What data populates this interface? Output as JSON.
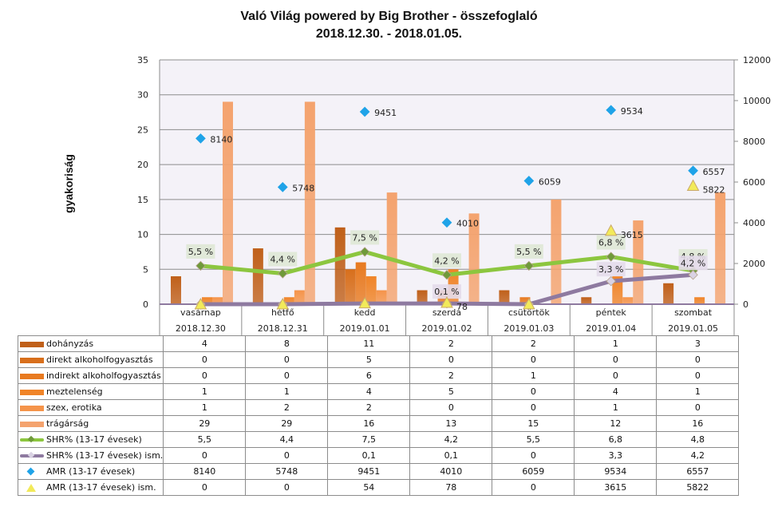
{
  "chart_data": {
    "type": "bar",
    "title": "Való Világ powered by Big Brother - összefoglaló",
    "subtitle": "2018.12.30. - 2018.01.05.",
    "ylabel": "gyakoriság",
    "y2label": "",
    "ylim": [
      0,
      35
    ],
    "y2lim": [
      0,
      12000
    ],
    "yticks": [
      "0",
      "5",
      "10",
      "15",
      "20",
      "25",
      "30",
      "35"
    ],
    "y2ticks": [
      "0",
      "2000",
      "4000",
      "6000",
      "8000",
      "10000",
      "12000"
    ],
    "grid": true,
    "legend": "data-table",
    "categories": [
      {
        "day": "vasárnap",
        "date": "2018.12.30"
      },
      {
        "day": "hétfő",
        "date": "2018.12.31"
      },
      {
        "day": "kedd",
        "date": "2019.01.01"
      },
      {
        "day": "szerda",
        "date": "2019.01.02"
      },
      {
        "day": "csütörtök",
        "date": "2019.01.03"
      },
      {
        "day": "péntek",
        "date": "2019.01.04"
      },
      {
        "day": "szombat",
        "date": "2019.01.05"
      }
    ],
    "series": [
      {
        "name": "dohányzás",
        "type": "bar",
        "axis": "left",
        "color": "#c0601a",
        "values": [
          4,
          8,
          11,
          2,
          2,
          1,
          3
        ],
        "table": [
          "4",
          "8",
          "11",
          "2",
          "2",
          "1",
          "3"
        ]
      },
      {
        "name": "direkt alkoholfogyasztás",
        "type": "bar",
        "axis": "left",
        "color": "#d86f1c",
        "values": [
          0,
          0,
          5,
          0,
          0,
          0,
          0
        ],
        "table": [
          "0",
          "0",
          "5",
          "0",
          "0",
          "0",
          "0"
        ]
      },
      {
        "name": "indirekt alkoholfogyasztás",
        "type": "bar",
        "axis": "left",
        "color": "#e87a20",
        "values": [
          0,
          0,
          6,
          2,
          1,
          0,
          0
        ],
        "table": [
          "0",
          "0",
          "6",
          "2",
          "1",
          "0",
          "0"
        ]
      },
      {
        "name": "meztelenség",
        "type": "bar",
        "axis": "left",
        "color": "#f08428",
        "values": [
          1,
          1,
          4,
          5,
          0,
          4,
          1
        ],
        "table": [
          "1",
          "1",
          "4",
          "5",
          "0",
          "4",
          "1"
        ]
      },
      {
        "name": "szex, erotika",
        "type": "bar",
        "axis": "left",
        "color": "#f5944a",
        "values": [
          1,
          2,
          2,
          0,
          0,
          1,
          0
        ],
        "table": [
          "1",
          "2",
          "2",
          "0",
          "0",
          "1",
          "0"
        ]
      },
      {
        "name": "trágárság",
        "type": "bar",
        "axis": "left",
        "color": "#f4a36e",
        "values": [
          29,
          29,
          16,
          13,
          15,
          12,
          16
        ],
        "table": [
          "29",
          "29",
          "16",
          "13",
          "15",
          "12",
          "16"
        ]
      },
      {
        "name": "SHR% (13-17 évesek)",
        "type": "line",
        "axis": "left",
        "color": "#8cc63f",
        "marker_color": "#6f9a3a",
        "values": [
          5.5,
          4.4,
          7.5,
          4.2,
          5.5,
          6.8,
          4.8
        ],
        "labels": [
          "5,5 %",
          "4,4 %",
          "7,5 %",
          "4,2 %",
          "5,5 %",
          "6,8 %",
          "4,8 %"
        ],
        "table": [
          "5,5",
          "4,4",
          "7,5",
          "4,2",
          "5,5",
          "6,8",
          "4,8"
        ]
      },
      {
        "name": "SHR% (13-17 évesek) ism.",
        "type": "line",
        "axis": "left",
        "color": "#8e7aa0",
        "marker_color": "#d9d2e3",
        "values": [
          0,
          0,
          0.1,
          0.1,
          0,
          3.3,
          4.2
        ],
        "labels": [
          "",
          "",
          "",
          "0,1 %",
          "",
          "3,3 %",
          "4,2 %"
        ],
        "table": [
          "0",
          "0",
          "0,1",
          "0,1",
          "0",
          "3,3",
          "4,2"
        ]
      },
      {
        "name": "AMR (13-17 évesek)",
        "type": "scatter",
        "axis": "right",
        "marker": "diamond",
        "color": "#1fa3e8",
        "values": [
          8140,
          5748,
          9451,
          4010,
          6059,
          9534,
          6557
        ],
        "labels": [
          "8140",
          "5748",
          "9451",
          "4010",
          "6059",
          "9534",
          "6557"
        ],
        "table": [
          "8140",
          "5748",
          "9451",
          "4010",
          "6059",
          "9534",
          "6557"
        ]
      },
      {
        "name": "AMR (13-17 évesek) ism.",
        "type": "scatter",
        "axis": "right",
        "marker": "triangle",
        "color": "#f2ea5a",
        "values": [
          0,
          0,
          54,
          78,
          0,
          3615,
          5822
        ],
        "labels": [
          "",
          "",
          "",
          "78",
          "",
          "3615",
          "5822"
        ],
        "table": [
          "0",
          "0",
          "54",
          "78",
          "0",
          "3615",
          "5822"
        ]
      }
    ]
  }
}
